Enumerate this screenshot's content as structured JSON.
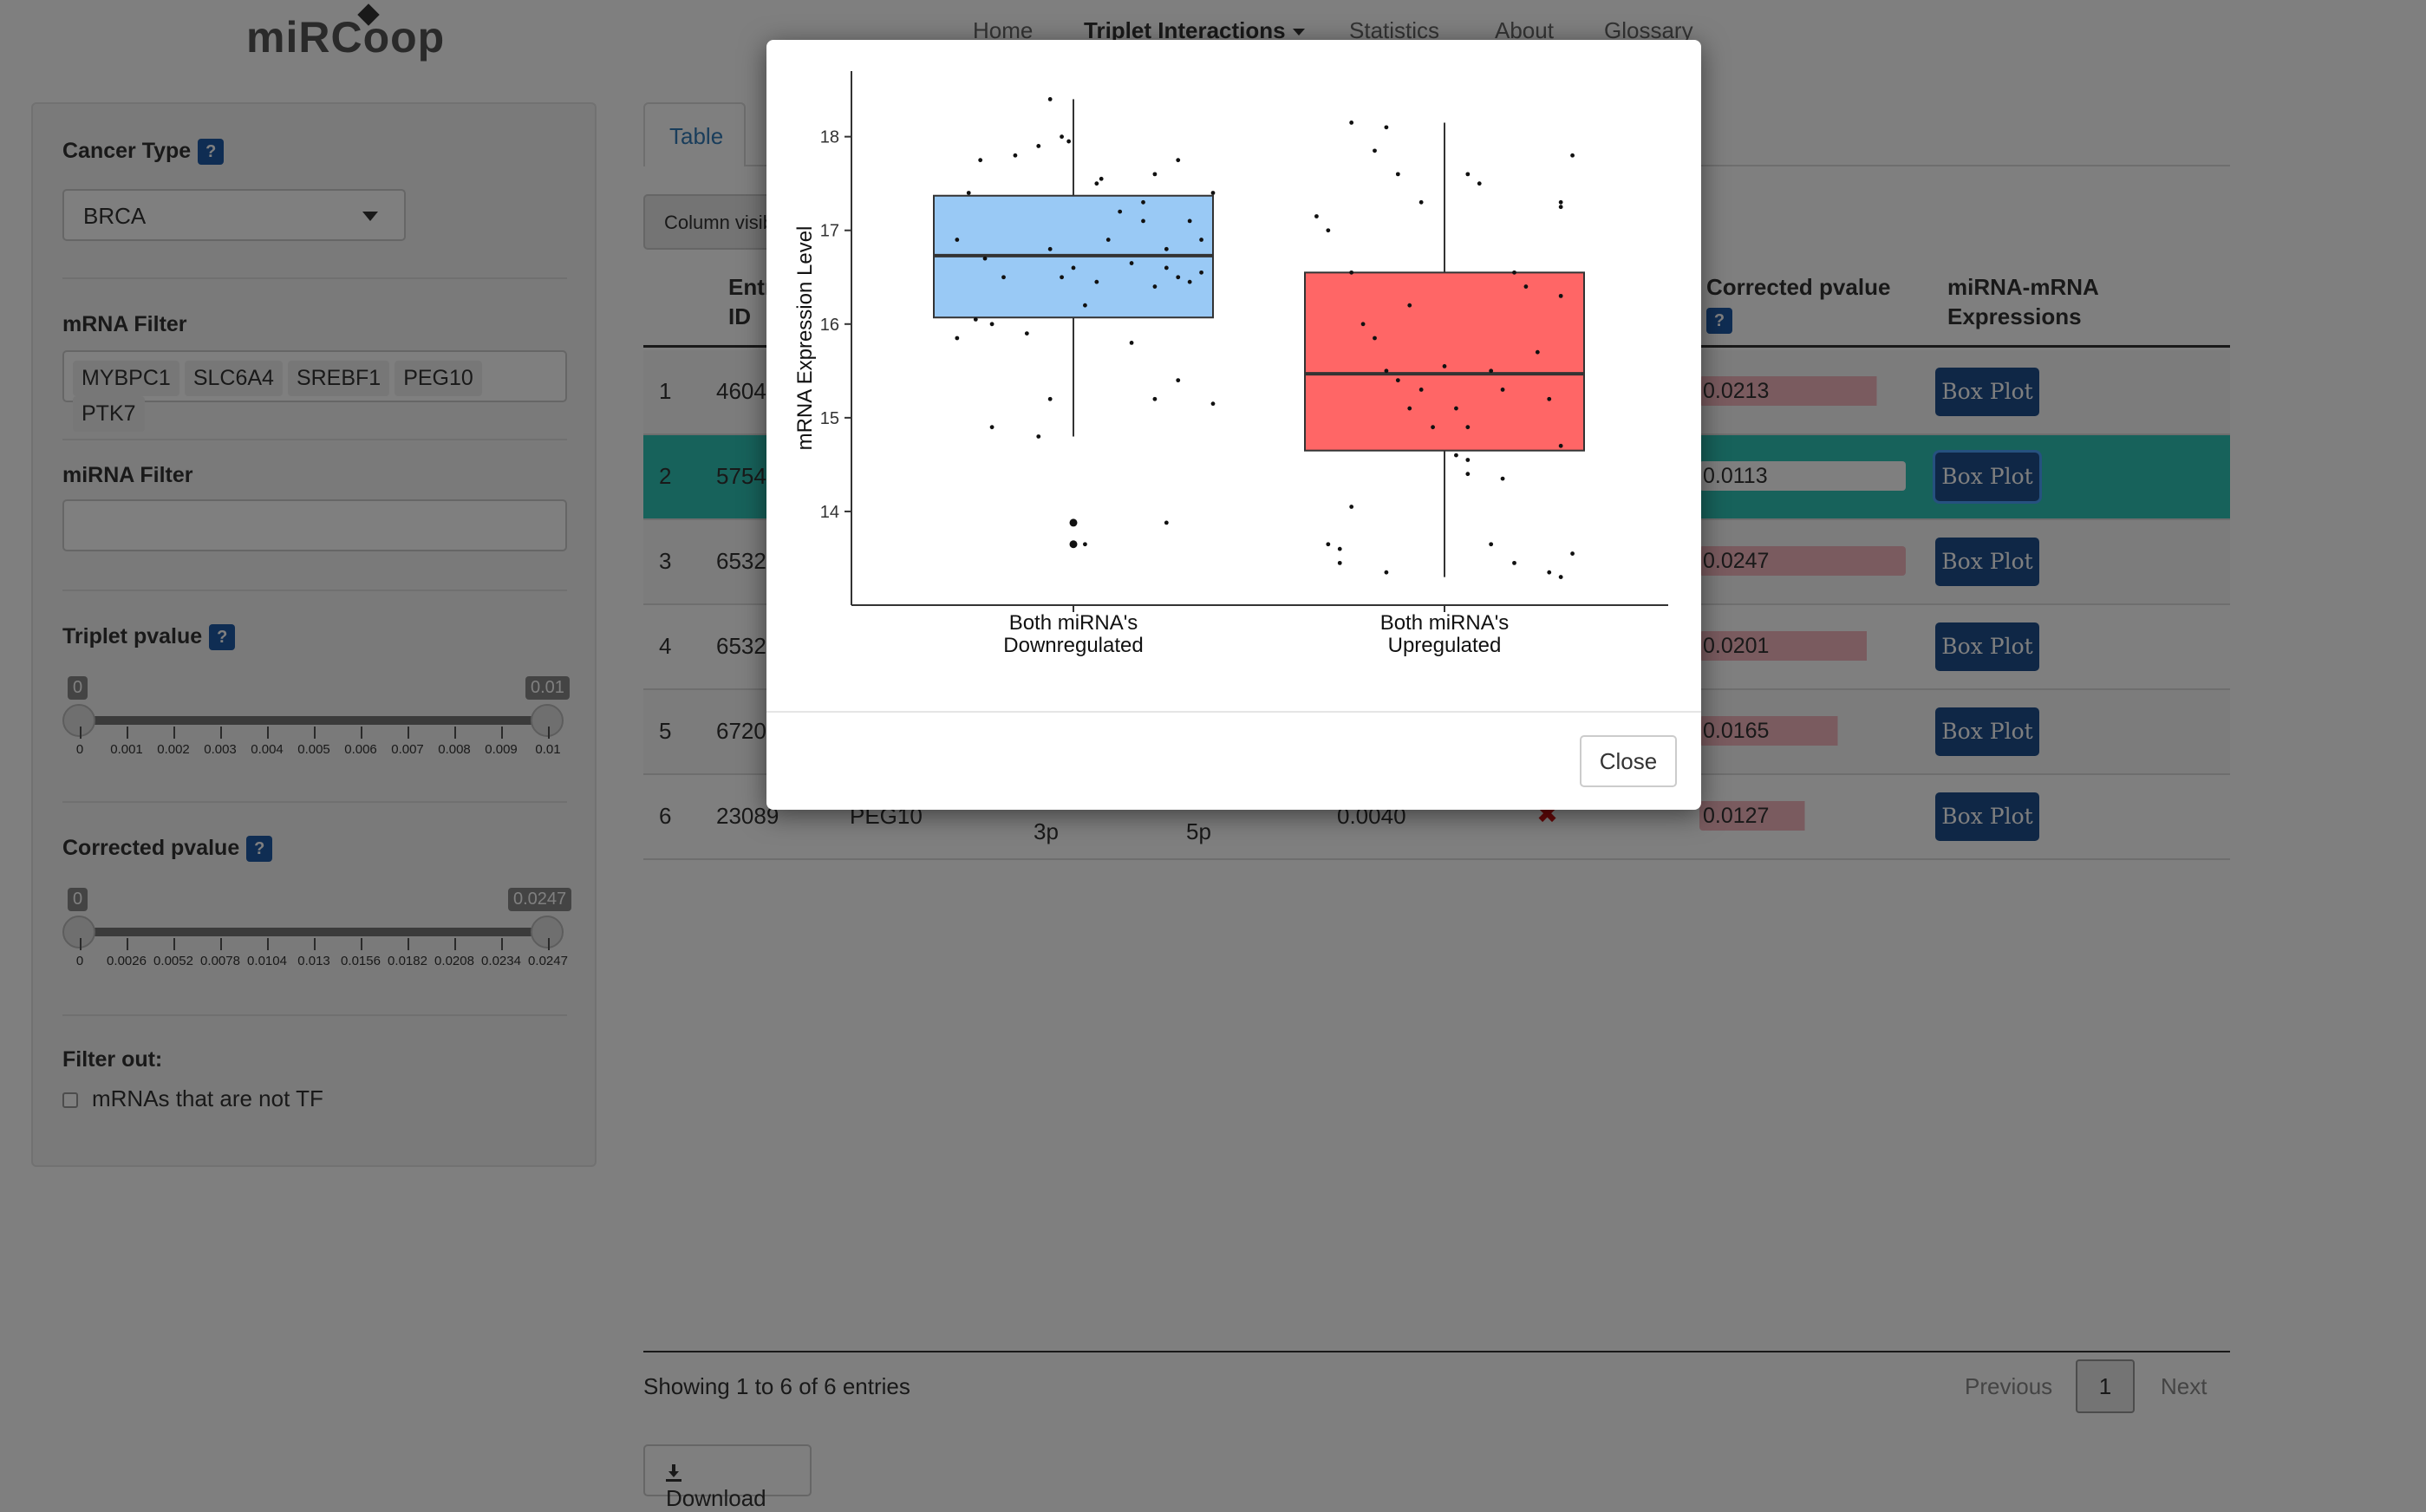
{
  "nav": {
    "logo": "miRCoop",
    "items": [
      "Home",
      "Triplet Interactions",
      "Statistics",
      "About",
      "Glossary"
    ]
  },
  "sidebar": {
    "cancer_type_label": "Cancer Type",
    "cancer_type_value": "BRCA",
    "mrna_filter_label": "mRNA Filter",
    "mrna_tags": [
      "MYBPC1",
      "SLC6A4",
      "SREBF1",
      "PEG10",
      "PTK7"
    ],
    "mirna_filter_label": "miRNA Filter",
    "mirna_filter_value": "",
    "triplet_pvalue_label": "Triplet pvalue",
    "triplet_slider": {
      "min_bubble": "0",
      "max_bubble": "0.01",
      "ticks": [
        "0",
        "0.001",
        "0.002",
        "0.003",
        "0.004",
        "0.005",
        "0.006",
        "0.007",
        "0.008",
        "0.009",
        "0.01"
      ]
    },
    "corrected_pvalue_label": "Corrected pvalue",
    "corrected_slider": {
      "min_bubble": "0",
      "max_bubble": "0.0247",
      "ticks": [
        "0",
        "0.0026",
        "0.0052",
        "0.0078",
        "0.0104",
        "0.013",
        "0.0156",
        "0.0182",
        "0.0208",
        "0.0234",
        "0.0247"
      ]
    },
    "filter_out_label": "Filter out:",
    "checkbox_label": "mRNAs that are not TF",
    "qmark": "?"
  },
  "main": {
    "tab_label": "Table",
    "colvis_label": "Column visibility",
    "headers": {
      "entrez": "Entrez ID",
      "corrected": "Corrected pvalue",
      "expressions": "miRNA-mRNA Expressions"
    },
    "rows": [
      {
        "index": "1",
        "entrez": "4604",
        "corrected": "0.0213",
        "fill": 0.86,
        "button": "Box Plot"
      },
      {
        "index": "2",
        "entrez": "5754",
        "corrected": "0.0113",
        "fill": 0.46,
        "button": "Box Plot"
      },
      {
        "index": "3",
        "entrez": "6532",
        "corrected": "0.0247",
        "fill": 1.0,
        "button": "Box Plot"
      },
      {
        "index": "4",
        "entrez": "6532",
        "corrected": "0.0201",
        "fill": 0.81,
        "button": "Box Plot"
      },
      {
        "index": "5",
        "entrez": "6720",
        "corrected": "0.0165",
        "fill": 0.67,
        "button": "Box Plot"
      },
      {
        "index": "6",
        "entrez": "23089",
        "mrna": "PEG10",
        "mirna1_suffix": "3p",
        "mirna2_suffix": "5p",
        "triplet": "0.0040",
        "corrected": "0.0127",
        "fill": 0.51,
        "button": "Box Plot"
      }
    ],
    "showing": "Showing 1 to 6 of 6 entries",
    "previous": "Previous",
    "page": "1",
    "next": "Next",
    "download": "Download"
  },
  "modal": {
    "close_label": "Close"
  },
  "colors": {
    "down": "#99c9f5",
    "up": "#ff6666",
    "bar_fill": "#f4b6be",
    "selected_row": "#2ec4b6"
  },
  "chart_data": {
    "type": "box",
    "ylabel": "mRNA Expression Level",
    "ylim": [
      13.0,
      18.7
    ],
    "yticks": [
      14,
      15,
      16,
      17,
      18
    ],
    "categories": [
      "Both miRNA's\nDownregulated",
      "Both miRNA's\nUpregulated"
    ],
    "boxes": [
      {
        "q1": 16.07,
        "median": 16.73,
        "q3": 17.37,
        "whisker_low": 14.8,
        "whisker_high": 18.4,
        "color": "#99c9f5",
        "points": [
          [
            -0.45,
            17.4
          ],
          [
            -0.5,
            16.9
          ],
          [
            -0.38,
            16.7
          ],
          [
            -0.3,
            16.5
          ],
          [
            -0.42,
            16.05
          ],
          [
            -0.35,
            16.0
          ],
          [
            -0.2,
            15.9
          ],
          [
            -0.1,
            16.8
          ],
          [
            -0.05,
            16.5
          ],
          [
            0.0,
            16.6
          ],
          [
            0.05,
            16.2
          ],
          [
            0.1,
            16.45
          ],
          [
            0.15,
            16.9
          ],
          [
            0.2,
            17.2
          ],
          [
            0.25,
            16.65
          ],
          [
            0.3,
            17.1
          ],
          [
            0.35,
            16.4
          ],
          [
            0.4,
            16.8
          ],
          [
            0.45,
            16.5
          ],
          [
            0.5,
            17.1
          ],
          [
            0.55,
            16.9
          ],
          [
            -0.25,
            17.8
          ],
          [
            -0.15,
            17.9
          ],
          [
            -0.4,
            17.75
          ],
          [
            0.3,
            17.3
          ],
          [
            0.35,
            17.6
          ],
          [
            0.45,
            17.75
          ],
          [
            -0.05,
            18.0
          ],
          [
            -0.02,
            17.95
          ],
          [
            0.1,
            17.5
          ],
          [
            0.12,
            17.55
          ],
          [
            0.6,
            17.4
          ],
          [
            0.5,
            16.45
          ],
          [
            0.55,
            16.55
          ],
          [
            0.4,
            16.6
          ],
          [
            -0.35,
            14.9
          ],
          [
            -0.15,
            14.8
          ],
          [
            -0.1,
            15.2
          ],
          [
            0.35,
            15.2
          ],
          [
            0.45,
            15.4
          ],
          [
            0.25,
            15.8
          ],
          [
            0.0,
            13.88
          ],
          [
            0.0,
            13.65
          ],
          [
            0.05,
            13.65
          ],
          [
            0.4,
            13.88
          ],
          [
            -0.1,
            18.4
          ],
          [
            0.6,
            15.15
          ],
          [
            -0.5,
            15.85
          ]
        ],
        "outliers": [
          [
            0.0,
            13.88
          ],
          [
            0.0,
            13.65
          ]
        ]
      },
      {
        "q1": 14.65,
        "median": 15.47,
        "q3": 16.55,
        "whisker_low": 13.3,
        "whisker_high": 18.15,
        "color": "#ff6666",
        "points": [
          [
            -0.55,
            17.15
          ],
          [
            -0.5,
            17.0
          ],
          [
            -0.4,
            18.15
          ],
          [
            -0.3,
            17.85
          ],
          [
            -0.2,
            17.6
          ],
          [
            -0.1,
            17.3
          ],
          [
            0.1,
            17.6
          ],
          [
            0.15,
            17.5
          ],
          [
            0.5,
            17.3
          ],
          [
            0.5,
            17.25
          ],
          [
            0.55,
            17.8
          ],
          [
            -0.4,
            16.55
          ],
          [
            -0.35,
            16.0
          ],
          [
            -0.3,
            15.85
          ],
          [
            -0.25,
            15.5
          ],
          [
            -0.2,
            15.4
          ],
          [
            -0.15,
            15.1
          ],
          [
            -0.1,
            15.3
          ],
          [
            0.0,
            15.55
          ],
          [
            0.05,
            15.1
          ],
          [
            0.1,
            14.9
          ],
          [
            0.2,
            15.5
          ],
          [
            0.25,
            15.3
          ],
          [
            0.3,
            16.55
          ],
          [
            0.35,
            16.4
          ],
          [
            0.4,
            15.7
          ],
          [
            0.45,
            15.2
          ],
          [
            0.5,
            16.3
          ],
          [
            0.5,
            14.7
          ],
          [
            0.05,
            14.6
          ],
          [
            0.1,
            14.4
          ],
          [
            0.25,
            14.35
          ],
          [
            -0.4,
            14.05
          ],
          [
            -0.5,
            13.65
          ],
          [
            -0.45,
            13.6
          ],
          [
            -0.45,
            13.45
          ],
          [
            -0.25,
            13.35
          ],
          [
            0.2,
            13.65
          ],
          [
            0.3,
            13.45
          ],
          [
            0.45,
            13.35
          ],
          [
            0.5,
            13.3
          ],
          [
            0.55,
            13.55
          ],
          [
            -0.15,
            16.2
          ],
          [
            -0.05,
            14.9
          ],
          [
            0.1,
            14.55
          ],
          [
            -0.25,
            18.1
          ]
        ],
        "outliers": []
      }
    ]
  }
}
